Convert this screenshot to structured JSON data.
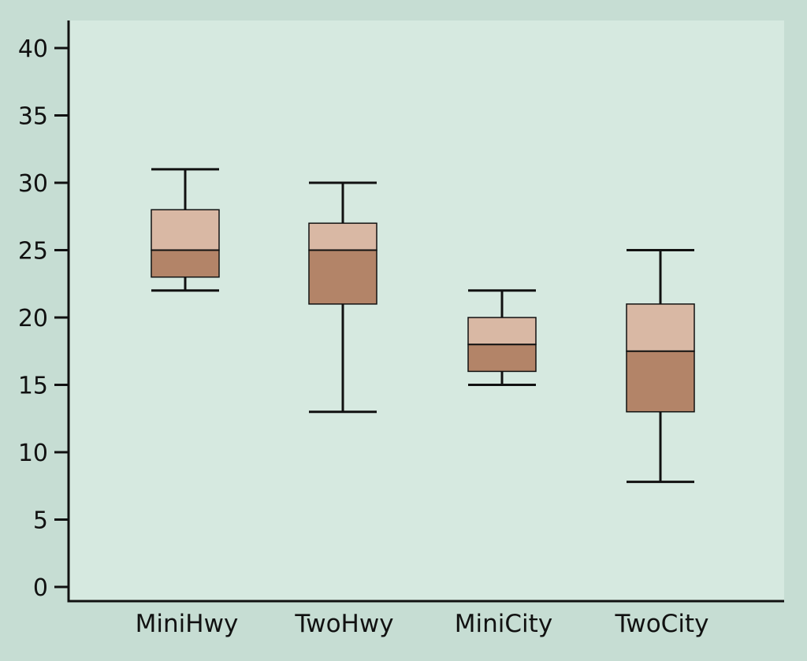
{
  "colors": {
    "outer_background": "#c6ddd3",
    "plot_background": "#d6e9e0",
    "upper_box": "#d9b8a4",
    "lower_box": "#b38468",
    "line": "#111111"
  },
  "chart_data": {
    "type": "boxplot",
    "title": "",
    "xlabel": "",
    "ylabel": "",
    "ylim": [
      0,
      40
    ],
    "y_ticks": [
      0,
      5,
      10,
      15,
      20,
      25,
      30,
      35,
      40
    ],
    "categories": [
      "MiniHwy",
      "TwoHwy",
      "MiniCity",
      "TwoCity"
    ],
    "boxes": [
      {
        "label": "MiniHwy",
        "min": 22,
        "q1": 23,
        "median": 25,
        "q3": 28,
        "max": 31
      },
      {
        "label": "TwoHwy",
        "min": 13,
        "q1": 21,
        "median": 25,
        "q3": 27,
        "max": 30
      },
      {
        "label": "MiniCity",
        "min": 15,
        "q1": 16,
        "median": 18,
        "q3": 20,
        "max": 22
      },
      {
        "label": "TwoCity",
        "min": 7.8,
        "q1": 13,
        "median": 17.5,
        "q3": 21,
        "max": 25
      }
    ],
    "grid": false,
    "legend": "none"
  }
}
